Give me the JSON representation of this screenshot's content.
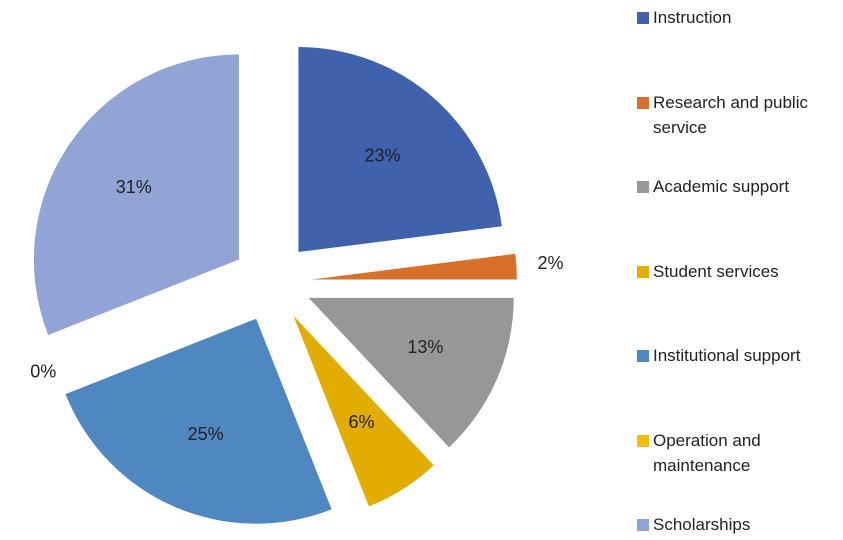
{
  "chart_data": {
    "type": "pie",
    "categories": [
      "Instruction",
      "Research and public service",
      "Academic support",
      "Student services",
      "Institutional support",
      "Operation and maintenance",
      "Scholarships"
    ],
    "values": [
      23,
      2,
      13,
      6,
      25,
      0,
      31
    ],
    "value_labels": [
      "23%",
      "2%",
      "13%",
      "6%",
      "25%",
      "0%",
      "31%"
    ],
    "colors": [
      "#4062ad",
      "#d7702b",
      "#979797",
      "#e3ac00",
      "#4f88c0",
      "#f2bb10",
      "#91a4d5"
    ],
    "exploded": true,
    "legend": "right"
  }
}
